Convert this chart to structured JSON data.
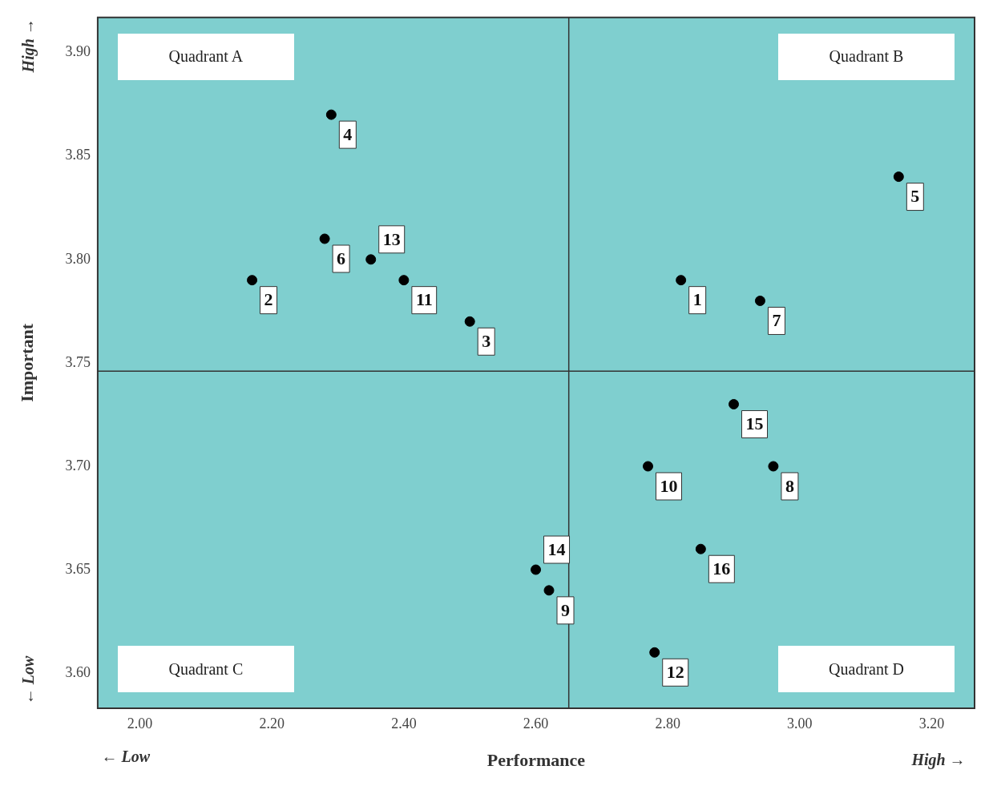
{
  "chart_data": {
    "type": "scatter",
    "xlabel": "Performance",
    "ylabel": "Important",
    "x": [
      2.82,
      2.17,
      2.5,
      2.29,
      3.15,
      2.28,
      2.94,
      2.96,
      2.62,
      2.77,
      2.4,
      2.78,
      2.35,
      2.6,
      2.9,
      2.85
    ],
    "series": [
      {
        "color": "#000000",
        "values": [
          3.79,
          3.79,
          3.77,
          3.87,
          3.84,
          3.81,
          3.78,
          3.7,
          3.64,
          3.7,
          3.79,
          3.61,
          3.8,
          3.65,
          3.73,
          3.66
        ]
      }
    ],
    "xlim": [
      1.936,
      3.265
    ],
    "ylim": [
      3.583,
      3.917
    ],
    "xticks": [
      {
        "value": 2.0,
        "label": "2.00"
      },
      {
        "value": 2.2,
        "label": "2.20"
      },
      {
        "value": 2.4,
        "label": "2.40"
      },
      {
        "value": 2.6,
        "label": "2.60"
      },
      {
        "value": 2.8,
        "label": "2.80"
      },
      {
        "value": 3.0,
        "label": "3.00"
      },
      {
        "value": 3.2,
        "label": "3.20"
      }
    ],
    "yticks": [
      {
        "value": 3.6,
        "label": "3.60"
      },
      {
        "value": 3.65,
        "label": "3.65"
      },
      {
        "value": 3.7,
        "label": "3.70"
      },
      {
        "value": 3.75,
        "label": "3.75"
      },
      {
        "value": 3.8,
        "label": "3.80"
      },
      {
        "value": 3.85,
        "label": "3.85"
      },
      {
        "value": 3.9,
        "label": "3.90"
      }
    ],
    "ref_lines": [
      {
        "axis": "x",
        "value": 2.65,
        "color": "#333333"
      },
      {
        "axis": "y",
        "value": 3.746,
        "color": "#333333"
      }
    ],
    "marker": "circle",
    "grid": false,
    "legend": false,
    "annotations": [
      "Quadrant A",
      "Quadrant B",
      "Quadrant C",
      "Quadrant D",
      "← Low",
      "High →",
      "← Low",
      "High →",
      {
        "text": "1",
        "x": 2.82,
        "y": 3.79
      },
      {
        "text": "2",
        "x": 2.17,
        "y": 3.79
      },
      {
        "text": "3",
        "x": 2.5,
        "y": 3.77
      },
      {
        "text": "4",
        "x": 2.29,
        "y": 3.87
      },
      {
        "text": "5",
        "x": 3.15,
        "y": 3.84
      },
      {
        "text": "6",
        "x": 2.28,
        "y": 3.81
      },
      {
        "text": "7",
        "x": 2.94,
        "y": 3.78
      },
      {
        "text": "8",
        "x": 2.96,
        "y": 3.7
      },
      {
        "text": "9",
        "x": 2.62,
        "y": 3.64
      },
      {
        "text": "10",
        "x": 2.77,
        "y": 3.7
      },
      {
        "text": "11",
        "x": 2.4,
        "y": 3.79
      },
      {
        "text": "12",
        "x": 2.78,
        "y": 3.61
      },
      {
        "text": "13",
        "x": 2.35,
        "y": 3.8
      },
      {
        "text": "14",
        "x": 2.6,
        "y": 3.65
      },
      {
        "text": "15",
        "x": 2.9,
        "y": 3.73
      },
      {
        "text": "16",
        "x": 2.85,
        "y": 3.66
      }
    ]
  }
}
